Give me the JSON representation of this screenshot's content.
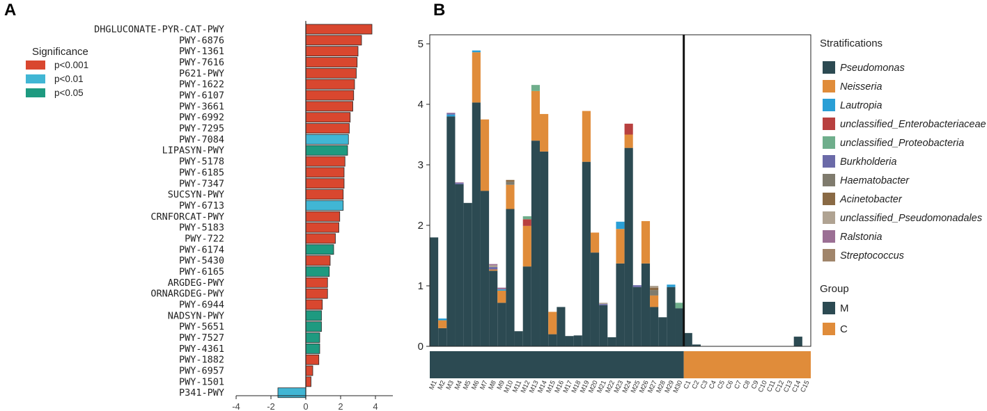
{
  "panels": {
    "a": "A",
    "b": "B"
  },
  "chart_data": [
    {
      "type": "bar",
      "orientation": "horizontal",
      "legend_title": "Significance",
      "legend": [
        {
          "label": "p<0.001",
          "color": "#d9472f"
        },
        {
          "label": "p<0.01",
          "color": "#41b6d4"
        },
        {
          "label": "p<0.05",
          "color": "#1e9a80"
        }
      ],
      "xlim": [
        -4,
        5
      ],
      "x_ticks": [
        "-4",
        "-2",
        "0",
        "2",
        "4"
      ],
      "x_tick_values": [
        -4,
        -2,
        0,
        2,
        4
      ],
      "bars": [
        {
          "label": "DHGLUCONATE-PYR-CAT-PWY",
          "value": 3.8,
          "sig": 0
        },
        {
          "label": "PWY-6876",
          "value": 3.2,
          "sig": 0
        },
        {
          "label": "PWY-1361",
          "value": 3.0,
          "sig": 0
        },
        {
          "label": "PWY-7616",
          "value": 2.95,
          "sig": 0
        },
        {
          "label": "P621-PWY",
          "value": 2.9,
          "sig": 0
        },
        {
          "label": "PWY-1622",
          "value": 2.8,
          "sig": 0
        },
        {
          "label": "PWY-6107",
          "value": 2.75,
          "sig": 0
        },
        {
          "label": "PWY-3661",
          "value": 2.7,
          "sig": 0
        },
        {
          "label": "PWY-6992",
          "value": 2.55,
          "sig": 0
        },
        {
          "label": "PWY-7295",
          "value": 2.5,
          "sig": 0
        },
        {
          "label": "PWY-7084",
          "value": 2.45,
          "sig": 1
        },
        {
          "label": "LIPASYN-PWY",
          "value": 2.4,
          "sig": 2
        },
        {
          "label": "PWY-5178",
          "value": 2.25,
          "sig": 0
        },
        {
          "label": "PWY-6185",
          "value": 2.2,
          "sig": 0
        },
        {
          "label": "PWY-7347",
          "value": 2.2,
          "sig": 0
        },
        {
          "label": "SUCSYN-PWY",
          "value": 2.15,
          "sig": 0
        },
        {
          "label": "PWY-6713",
          "value": 2.15,
          "sig": 1
        },
        {
          "label": "CRNFORCAT-PWY",
          "value": 1.95,
          "sig": 0
        },
        {
          "label": "PWY-5183",
          "value": 1.9,
          "sig": 0
        },
        {
          "label": "PWY-722",
          "value": 1.7,
          "sig": 0
        },
        {
          "label": "PWY-6174",
          "value": 1.6,
          "sig": 2
        },
        {
          "label": "PWY-5430",
          "value": 1.4,
          "sig": 0
        },
        {
          "label": "PWY-6165",
          "value": 1.35,
          "sig": 2
        },
        {
          "label": "ARGDEG-PWY",
          "value": 1.25,
          "sig": 0
        },
        {
          "label": "ORNARGDEG-PWY",
          "value": 1.25,
          "sig": 0
        },
        {
          "label": "PWY-6944",
          "value": 0.95,
          "sig": 0
        },
        {
          "label": "NADSYN-PWY",
          "value": 0.9,
          "sig": 2
        },
        {
          "label": "PWY-5651",
          "value": 0.9,
          "sig": 2
        },
        {
          "label": "PWY-7527",
          "value": 0.8,
          "sig": 2
        },
        {
          "label": "PWY-4361",
          "value": 0.8,
          "sig": 2
        },
        {
          "label": "PWY-1882",
          "value": 0.75,
          "sig": 0
        },
        {
          "label": "PWY-6957",
          "value": 0.4,
          "sig": 0
        },
        {
          "label": "PWY-1501",
          "value": 0.3,
          "sig": 0
        },
        {
          "label": "P341-PWY",
          "value": -1.6,
          "sig": 1
        }
      ]
    },
    {
      "type": "stacked_bar",
      "ylim": [
        0,
        5
      ],
      "y_ticks": [
        "0",
        "1",
        "2",
        "3",
        "4",
        "5"
      ],
      "y_tick_values": [
        0,
        1,
        2,
        3,
        4,
        5
      ],
      "categories": [
        "M1",
        "M2",
        "M3",
        "M4",
        "M5",
        "M6",
        "M7",
        "M8",
        "M9",
        "M10",
        "M11",
        "M12",
        "M13",
        "M14",
        "M15",
        "M16",
        "M17",
        "M18",
        "M19",
        "M20",
        "M21",
        "M22",
        "M23",
        "M24",
        "M25",
        "M26",
        "M27",
        "M28",
        "M29",
        "M30",
        "C1",
        "C2",
        "C3",
        "C4",
        "C5",
        "C6",
        "C7",
        "C8",
        "C9",
        "C10",
        "C11",
        "C12",
        "C13",
        "C14",
        "C15"
      ],
      "group_of_category": [
        "M",
        "M",
        "M",
        "M",
        "M",
        "M",
        "M",
        "M",
        "M",
        "M",
        "M",
        "M",
        "M",
        "M",
        "M",
        "M",
        "M",
        "M",
        "M",
        "M",
        "M",
        "M",
        "M",
        "M",
        "M",
        "M",
        "M",
        "M",
        "M",
        "M",
        "C",
        "C",
        "C",
        "C",
        "C",
        "C",
        "C",
        "C",
        "C",
        "C",
        "C",
        "C",
        "C",
        "C",
        "C"
      ],
      "legend_title": "Stratifications",
      "series": [
        {
          "name": "Pseudomonas",
          "color": "#2c4a52",
          "values": [
            1.8,
            0.3,
            3.8,
            2.68,
            2.37,
            4.03,
            2.57,
            1.25,
            0.72,
            2.27,
            0.25,
            1.32,
            3.4,
            3.22,
            0.2,
            0.65,
            0.17,
            0.18,
            3.05,
            1.55,
            0.68,
            0.15,
            1.37,
            3.28,
            0.98,
            1.37,
            0.65,
            0.48,
            0.98,
            0.63,
            0.22,
            0.03,
            0,
            0,
            0,
            0,
            0,
            0,
            0,
            0,
            0,
            0,
            0,
            0.16,
            0
          ]
        },
        {
          "name": "Neisseria",
          "color": "#e08c3a",
          "values": [
            0,
            0.13,
            0,
            0,
            0,
            0.83,
            1.18,
            0.02,
            0.2,
            0.4,
            0,
            0.67,
            0.82,
            0.62,
            0.37,
            0,
            0,
            0,
            0.84,
            0.33,
            0,
            0,
            0.57,
            0.22,
            0,
            0.7,
            0.19,
            0,
            0,
            0,
            0,
            0,
            0,
            0,
            0,
            0,
            0,
            0,
            0,
            0,
            0,
            0,
            0,
            0,
            0
          ]
        },
        {
          "name": "Lautropia",
          "color": "#2a9fd6",
          "values": [
            0,
            0.03,
            0.03,
            0,
            0,
            0.03,
            0,
            0,
            0.02,
            0,
            0,
            0,
            0,
            0,
            0,
            0,
            0,
            0,
            0,
            0,
            0,
            0,
            0.12,
            0,
            0,
            0,
            0,
            0,
            0.04,
            0,
            0,
            0,
            0,
            0,
            0,
            0,
            0,
            0,
            0,
            0,
            0,
            0,
            0,
            0,
            0
          ]
        },
        {
          "name": "unclassified_Enterobacteriaceae",
          "color": "#b8403f",
          "values": [
            0,
            0,
            0,
            0,
            0,
            0,
            0,
            0,
            0,
            0,
            0,
            0.11,
            0,
            0,
            0,
            0,
            0,
            0,
            0,
            0,
            0,
            0,
            0,
            0.18,
            0,
            0,
            0,
            0,
            0,
            0,
            0,
            0,
            0,
            0,
            0,
            0,
            0,
            0,
            0,
            0,
            0,
            0,
            0,
            0,
            0
          ]
        },
        {
          "name": "unclassified_Proteobacteria",
          "color": "#6fae8c",
          "values": [
            0,
            0,
            0,
            0,
            0,
            0,
            0,
            0,
            0,
            0,
            0,
            0.05,
            0.1,
            0,
            0,
            0,
            0,
            0,
            0,
            0,
            0,
            0,
            0,
            0,
            0,
            0,
            0,
            0,
            0,
            0.09,
            0,
            0,
            0,
            0,
            0,
            0,
            0,
            0,
            0,
            0,
            0,
            0,
            0,
            0,
            0
          ]
        },
        {
          "name": "Burkholderia",
          "color": "#6b6aa8",
          "values": [
            0,
            0,
            0.02,
            0.02,
            0,
            0,
            0,
            0.04,
            0,
            0,
            0,
            0,
            0,
            0,
            0,
            0,
            0,
            0,
            0,
            0,
            0.02,
            0,
            0,
            0,
            0.03,
            0,
            0,
            0,
            0,
            0,
            0,
            0,
            0,
            0,
            0,
            0,
            0,
            0,
            0,
            0,
            0,
            0,
            0,
            0,
            0
          ]
        },
        {
          "name": "Haematobacter",
          "color": "#7f7b6d",
          "values": [
            0,
            0,
            0,
            0,
            0,
            0,
            0,
            0,
            0,
            0.05,
            0,
            0,
            0,
            0,
            0,
            0,
            0,
            0,
            0,
            0,
            0,
            0,
            0,
            0,
            0,
            0,
            0.09,
            0,
            0,
            0,
            0,
            0,
            0,
            0,
            0,
            0,
            0,
            0,
            0,
            0,
            0,
            0,
            0,
            0,
            0
          ]
        },
        {
          "name": "Acinetobacter",
          "color": "#8a6a45",
          "values": [
            0,
            0,
            0,
            0,
            0,
            0,
            0,
            0,
            0,
            0.03,
            0,
            0,
            0,
            0,
            0,
            0,
            0,
            0,
            0,
            0,
            0,
            0,
            0,
            0,
            0,
            0,
            0.04,
            0,
            0,
            0,
            0,
            0,
            0,
            0,
            0,
            0,
            0,
            0,
            0,
            0,
            0,
            0,
            0,
            0,
            0
          ]
        },
        {
          "name": "unclassified_Pseudomonadales",
          "color": "#b0a392",
          "values": [
            0,
            0,
            0,
            0,
            0,
            0,
            0,
            0.03,
            0,
            0,
            0,
            0,
            0,
            0,
            0,
            0,
            0,
            0,
            0,
            0,
            0.02,
            0,
            0,
            0,
            0,
            0,
            0.03,
            0,
            0,
            0,
            0,
            0,
            0,
            0,
            0,
            0,
            0,
            0,
            0,
            0,
            0,
            0,
            0,
            0,
            0
          ]
        },
        {
          "name": "Ralstonia",
          "color": "#9b6f94",
          "values": [
            0,
            0,
            0.01,
            0.01,
            0,
            0,
            0,
            0.02,
            0.03,
            0,
            0,
            0,
            0,
            0,
            0,
            0,
            0,
            0,
            0,
            0,
            0,
            0,
            0,
            0,
            0,
            0,
            0,
            0,
            0,
            0,
            0,
            0,
            0,
            0,
            0,
            0,
            0,
            0,
            0,
            0,
            0,
            0,
            0,
            0,
            0
          ]
        },
        {
          "name": "Streptococcus",
          "color": "#a0856b",
          "values": [
            0,
            0,
            0,
            0,
            0,
            0,
            0,
            0,
            0,
            0,
            0,
            0,
            0,
            0,
            0,
            0,
            0,
            0,
            0,
            0,
            0,
            0,
            0,
            0,
            0,
            0,
            0,
            0,
            0,
            0,
            0,
            0,
            0,
            0,
            0,
            0,
            0,
            0,
            0,
            0,
            0,
            0,
            0,
            0,
            0
          ]
        }
      ],
      "group_legend_title": "Group",
      "groups": [
        {
          "name": "M",
          "color": "#2c4a52"
        },
        {
          "name": "C",
          "color": "#e08c3a"
        }
      ]
    }
  ]
}
